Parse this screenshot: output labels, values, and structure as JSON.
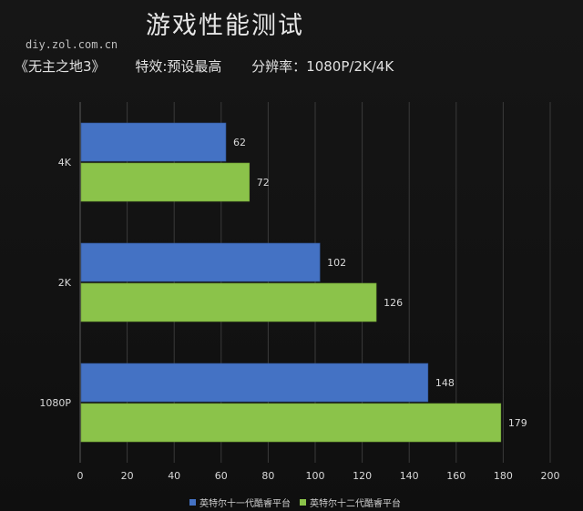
{
  "watermark": "diy.zol.com.cn",
  "subtitle": {
    "game": "《无主之地3》",
    "effect": "特效:预设最高",
    "resolution": "分辨率：1080P/2K/4K"
  },
  "colors": {
    "series_1": "#4472c4",
    "series_2": "#8bc34a",
    "axis": "#595959",
    "grid": "#3a3a3a",
    "text": "#d9d9d9"
  },
  "chart_data": {
    "type": "bar",
    "orientation": "horizontal",
    "title": "游戏性能测试",
    "categories": [
      "4K",
      "2K",
      "1080P"
    ],
    "series": [
      {
        "name": "英特尔十一代酷睿平台",
        "values": [
          62,
          102,
          148
        ]
      },
      {
        "name": "英特尔十二代酷睿平台",
        "values": [
          72,
          126,
          179
        ]
      }
    ],
    "xlim": [
      0,
      200
    ],
    "xticks": [
      0,
      20,
      40,
      60,
      80,
      100,
      120,
      140,
      160,
      180,
      200
    ],
    "grid": true,
    "legend": "bottom",
    "data_labels": true
  }
}
